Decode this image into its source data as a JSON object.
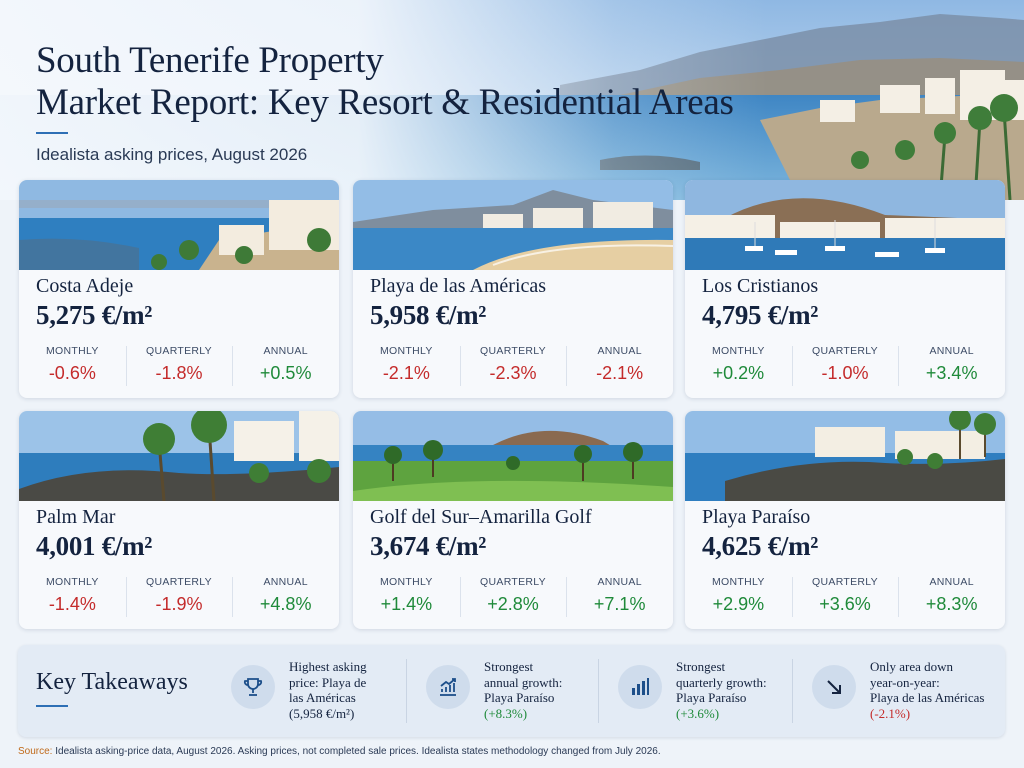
{
  "header": {
    "title_line1": "South Tenerife Property",
    "title_line2": "Market Report: Key Resort & Residential Areas",
    "subtitle": "Idealista asking prices, August 2026"
  },
  "stat_labels": {
    "monthly": "MONTHLY",
    "quarterly": "QUARTERLY",
    "annual": "ANNUAL"
  },
  "areas": [
    {
      "name": "Costa Adeje",
      "price": "5,275 €/m²",
      "monthly": "-0.6%",
      "quarterly": "-1.8%",
      "annual": "+0.5%"
    },
    {
      "name": "Playa de las Américas",
      "price": "5,958 €/m²",
      "monthly": "-2.1%",
      "quarterly": "-2.3%",
      "annual": "-2.1%"
    },
    {
      "name": "Los Cristianos",
      "price": "4,795 €/m²",
      "monthly": "+0.2%",
      "quarterly": "-1.0%",
      "annual": "+3.4%"
    },
    {
      "name": "Palm Mar",
      "price": "4,001 €/m²",
      "monthly": "-1.4%",
      "quarterly": "-1.9%",
      "annual": "+4.8%"
    },
    {
      "name": "Golf del Sur–Amarilla Golf",
      "price": "3,674 €/m²",
      "monthly": "+1.4%",
      "quarterly": "+2.8%",
      "annual": "+7.1%"
    },
    {
      "name": "Playa Paraíso",
      "price": "4,625 €/m²",
      "monthly": "+2.9%",
      "quarterly": "+3.6%",
      "annual": "+8.3%"
    }
  ],
  "colors": {
    "negative": "#c42b2b",
    "positive": "#1f8a3a",
    "accent": "#2e6fb5"
  },
  "takeaways": {
    "title": "Key Takeaways",
    "items": [
      {
        "icon": "trophy-icon",
        "lines": [
          "Highest asking",
          "price: Playa de",
          "las Américas",
          "(5,958 €/m²)"
        ]
      },
      {
        "icon": "trend-up-icon",
        "lines": [
          "Strongest",
          "annual growth:",
          "Playa Paraíso",
          "(+8.3%)"
        ]
      },
      {
        "icon": "bar-chart-icon",
        "lines": [
          "Strongest",
          "quarterly growth:",
          "Playa Paraíso",
          "(+3.6%)"
        ]
      },
      {
        "icon": "arrow-down-right-icon",
        "lines": [
          "Only area down",
          "year-on-year:",
          "Playa de las Américas",
          "(-2.1%)"
        ]
      }
    ]
  },
  "source": {
    "label": "Source:",
    "text": " Idealista asking-price data, August 2026. Asking prices, not completed sale prices. Idealista states methodology changed from July 2026."
  }
}
